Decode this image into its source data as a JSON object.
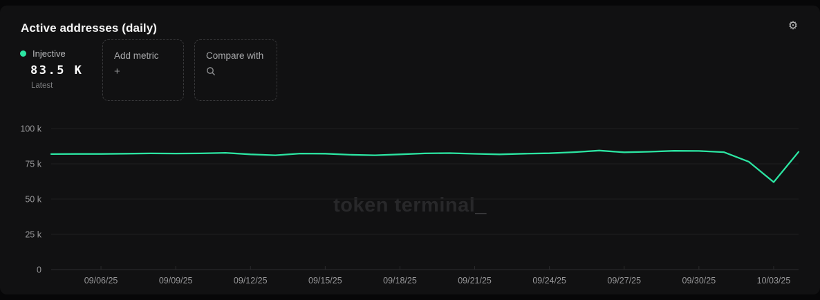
{
  "header": {
    "title": "Active addresses (daily)",
    "settings_icon": "gear"
  },
  "legend": {
    "series_name": "Injective",
    "latest_value": "83.5 K",
    "latest_caption": "Latest",
    "dot_color": "#2ce5a2"
  },
  "toolbar": {
    "add_metric_label": "Add metric",
    "add_metric_icon_glyph": "+",
    "compare_with_label": "Compare with"
  },
  "watermark": {
    "text": "token terminal",
    "cursor": "_"
  },
  "colors": {
    "accent_green": "#2ce5a2",
    "card_background": "#111112",
    "grid_line": "#1e1e20",
    "axis_line": "#2b2b2d",
    "tick_label": "#98989a"
  },
  "chart_data": {
    "type": "line",
    "title": "Active addresses (daily)",
    "unit": "thousands of addresses",
    "x": [
      "09/04/25",
      "09/05/25",
      "09/06/25",
      "09/07/25",
      "09/08/25",
      "09/09/25",
      "09/10/25",
      "09/11/25",
      "09/12/25",
      "09/13/25",
      "09/14/25",
      "09/15/25",
      "09/16/25",
      "09/17/25",
      "09/18/25",
      "09/19/25",
      "09/20/25",
      "09/21/25",
      "09/22/25",
      "09/23/25",
      "09/24/25",
      "09/25/25",
      "09/26/25",
      "09/27/25",
      "09/28/25",
      "09/29/25",
      "09/30/25",
      "10/01/25",
      "10/02/25",
      "10/03/25",
      "10/04/25"
    ],
    "series": [
      {
        "name": "Injective",
        "color": "#2ce5a2",
        "values": [
          81.9,
          82.0,
          82.0,
          82.2,
          82.4,
          82.3,
          82.4,
          82.8,
          81.7,
          81.1,
          82.3,
          82.2,
          81.4,
          81.1,
          81.7,
          82.4,
          82.6,
          82.1,
          81.7,
          82.2,
          82.5,
          83.3,
          84.4,
          83.2,
          83.6,
          84.2,
          84.1,
          83.3,
          76.5,
          62.0,
          83.5
        ]
      }
    ],
    "ylim": [
      0,
      100
    ],
    "y_ticks": [
      {
        "v": 100,
        "label": "100 k"
      },
      {
        "v": 75,
        "label": "75 k"
      },
      {
        "v": 50,
        "label": "50 k"
      },
      {
        "v": 25,
        "label": "25 k"
      },
      {
        "v": 0,
        "label": "0"
      }
    ],
    "x_tick_indices": [
      2,
      5,
      8,
      11,
      14,
      17,
      20,
      23,
      26,
      29
    ],
    "x_tick_labels": [
      "09/06/25",
      "09/09/25",
      "09/12/25",
      "09/15/25",
      "09/18/25",
      "09/21/25",
      "09/24/25",
      "09/27/25",
      "09/30/25",
      "10/03/25"
    ],
    "grid": "horizontal",
    "legend_position": "top-left"
  }
}
